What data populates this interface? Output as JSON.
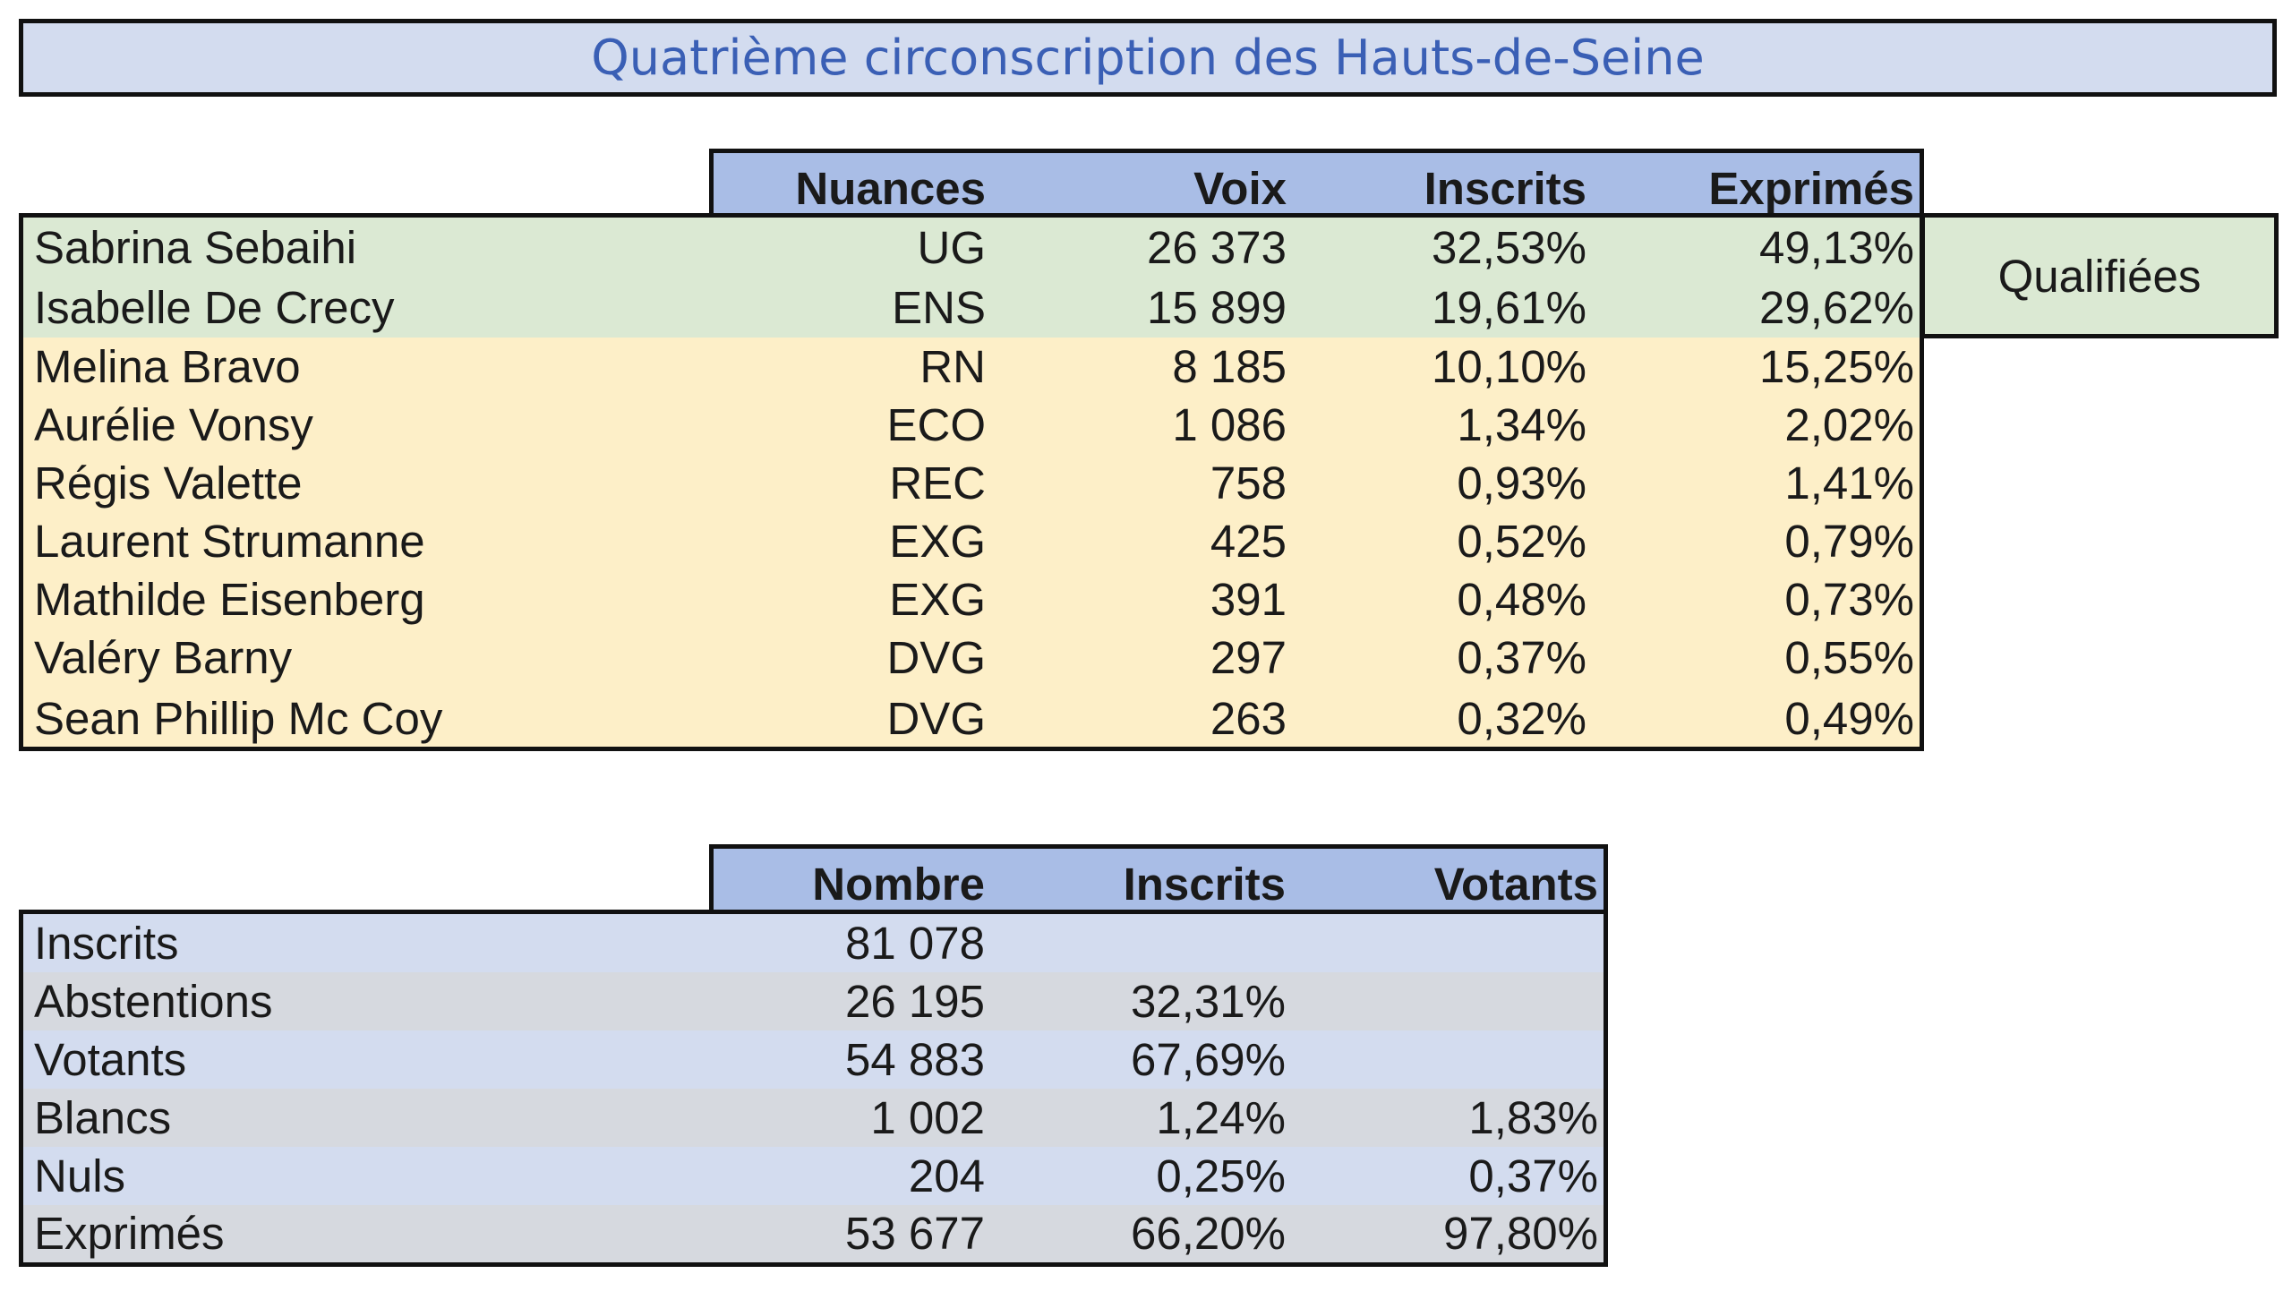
{
  "title": "Quatrième circonscription des Hauts-de-Seine",
  "results": {
    "headers": [
      "Nuances",
      "Voix",
      "Inscrits",
      "Exprimés"
    ],
    "rows": [
      {
        "name": "Sabrina Sebaihi",
        "nuance": "UG",
        "voix": "26 373",
        "inscrits": "32,53%",
        "exprimes": "49,13%",
        "qualified": true
      },
      {
        "name": "Isabelle De Crecy",
        "nuance": "ENS",
        "voix": "15 899",
        "inscrits": "19,61%",
        "exprimes": "29,62%",
        "qualified": true
      },
      {
        "name": "Melina Bravo",
        "nuance": "RN",
        "voix": "8 185",
        "inscrits": "10,10%",
        "exprimes": "15,25%",
        "qualified": false
      },
      {
        "name": "Aurélie Vonsy",
        "nuance": "ECO",
        "voix": "1 086",
        "inscrits": "1,34%",
        "exprimes": "2,02%",
        "qualified": false
      },
      {
        "name": "Régis Valette",
        "nuance": "REC",
        "voix": "758",
        "inscrits": "0,93%",
        "exprimes": "1,41%",
        "qualified": false
      },
      {
        "name": "Laurent Strumanne",
        "nuance": "EXG",
        "voix": "425",
        "inscrits": "0,52%",
        "exprimes": "0,79%",
        "qualified": false
      },
      {
        "name": "Mathilde Eisenberg",
        "nuance": "EXG",
        "voix": "391",
        "inscrits": "0,48%",
        "exprimes": "0,73%",
        "qualified": false
      },
      {
        "name": "Valéry Barny",
        "nuance": "DVG",
        "voix": "297",
        "inscrits": "0,37%",
        "exprimes": "0,55%",
        "qualified": false
      },
      {
        "name": "Sean Phillip Mc Coy",
        "nuance": "DVG",
        "voix": "263",
        "inscrits": "0,32%",
        "exprimes": "0,49%",
        "qualified": false
      }
    ],
    "qualified_label": "Qualifiées"
  },
  "stats": {
    "headers": [
      "Nombre",
      "Inscrits",
      "Votants"
    ],
    "rows": [
      {
        "label": "Inscrits",
        "nombre": "81 078",
        "inscrits": "",
        "votants": ""
      },
      {
        "label": "Abstentions",
        "nombre": "26 195",
        "inscrits": "32,31%",
        "votants": ""
      },
      {
        "label": "Votants",
        "nombre": "54 883",
        "inscrits": "67,69%",
        "votants": ""
      },
      {
        "label": "Blancs",
        "nombre": "1 002",
        "inscrits": "1,24%",
        "votants": "1,83%"
      },
      {
        "label": "Nuls",
        "nombre": "204",
        "inscrits": "0,25%",
        "votants": "0,37%"
      },
      {
        "label": "Exprimés",
        "nombre": "53 677",
        "inscrits": "66,20%",
        "votants": "97,80%"
      }
    ]
  },
  "colors": {
    "title_bg": "#d3dcef",
    "title_text": "#3a5fb5",
    "header_bg": "#a9bde6",
    "qualified_bg": "#dbe9d3",
    "others_bg": "#fdefc8",
    "stats_row_a": "#d3dcef",
    "stats_row_b": "#d6d9df"
  }
}
